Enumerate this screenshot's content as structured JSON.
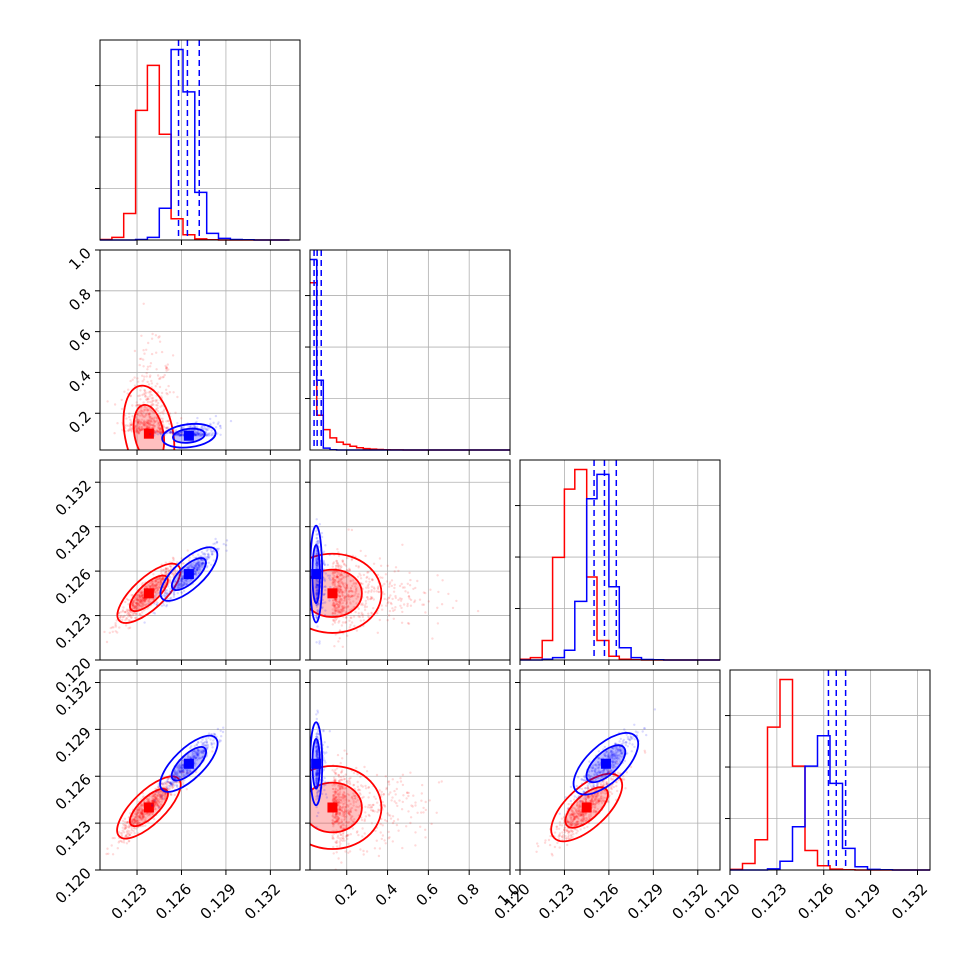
{
  "chart_data": {
    "type": "corner",
    "grid": true,
    "colors": {
      "series_a": "#ff0000",
      "series_b": "#0000ff"
    },
    "axis_ticks": {
      "p0": {
        "ticks": [
          0.123,
          0.126,
          0.129,
          0.132
        ],
        "labels": [
          "0.123",
          "0.126",
          "0.129",
          "0.132"
        ],
        "range": [
          0.1205,
          0.134
        ]
      },
      "p1": {
        "ticks": [
          0.2,
          0.4,
          0.6,
          0.8,
          1.0
        ],
        "labels": [
          "0.2",
          "0.4",
          "0.6",
          "0.8",
          "1.0"
        ],
        "range": [
          0.02,
          1.0
        ]
      },
      "p2": {
        "ticks": [
          0.12,
          0.123,
          0.126,
          0.129,
          0.132
        ],
        "labels": [
          "0.120",
          "0.123",
          "0.126",
          "0.129",
          "0.132"
        ],
        "range": [
          0.12,
          0.1335
        ]
      },
      "p3": {
        "ticks": [
          0.12,
          0.123,
          0.126,
          0.129,
          0.132
        ],
        "labels": [
          "0.120",
          "0.123",
          "0.126",
          "0.129",
          "0.132"
        ],
        "range": [
          0.12,
          0.1328
        ]
      }
    },
    "diagonal": [
      {
        "param": "p0",
        "bins": [
          0.1205,
          0.1213,
          0.1221,
          0.1229,
          0.1237,
          0.1245,
          0.1253,
          0.1261,
          0.1269,
          0.1277,
          0.1285,
          0.1293,
          0.1301,
          0.1309,
          0.1317,
          0.1325,
          0.1333
        ],
        "series": [
          {
            "name": "",
            "color": "#ff0000",
            "counts": [
              0.2,
              1.0,
              10.0,
              49.0,
              66.0,
              40.0,
              8.0,
              2.0,
              0.4,
              0.1,
              0,
              0,
              0,
              0,
              0,
              0
            ]
          },
          {
            "name": "",
            "color": "#0000ff",
            "counts": [
              0,
              0,
              0,
              0.2,
              1.0,
              12.0,
              72.0,
              56.0,
              18.0,
              2.5,
              0.6,
              0.2,
              0.1,
              0,
              0,
              0
            ]
          }
        ],
        "quantiles": [
          0.1258,
          0.1264,
          0.1272
        ]
      },
      {
        "param": "p1",
        "bins": [
          0.02,
          0.0526,
          0.0853,
          0.1179,
          0.1505,
          0.1831,
          0.2158,
          0.2484,
          0.281,
          0.3137,
          0.3463,
          0.3789,
          0.4115,
          0.4442,
          0.4768,
          0.5094,
          0.542,
          0.5747,
          0.6073,
          0.64,
          0.6727,
          0.7053,
          0.738,
          0.7706,
          0.8033,
          0.8359,
          0.8686,
          0.9012,
          0.9339,
          0.9665,
          1.0
        ],
        "series": [
          {
            "name": "",
            "color": "#ff0000",
            "counts": [
              360,
              75,
              44,
              26,
              17,
              12,
              8,
              5,
              3,
              2,
              1,
              0.6,
              0.3,
              0.15,
              0.05,
              0.02,
              0.01,
              0,
              0,
              0,
              0,
              0,
              0,
              0,
              0,
              0,
              0,
              0,
              0,
              0
            ]
          },
          {
            "name": "",
            "color": "#0000ff",
            "counts": [
              410,
              150,
              4,
              0.5,
              0.1,
              0,
              0,
              0,
              0,
              0,
              0,
              0,
              0,
              0,
              0,
              0,
              0,
              0,
              0,
              0,
              0,
              0,
              0,
              0,
              0,
              0,
              0,
              0,
              0,
              0
            ]
          }
        ],
        "quantiles": [
          0.04,
          0.055,
          0.075
        ]
      },
      {
        "param": "p2",
        "bins": [
          0.12,
          0.1207,
          0.1215,
          0.1222,
          0.123,
          0.1237,
          0.1245,
          0.1252,
          0.126,
          0.1267,
          0.1275,
          0.1282,
          0.129,
          0.1297,
          0.1305,
          0.1312,
          0.132,
          0.1327,
          0.1335
        ],
        "series": [
          {
            "name": "",
            "color": "#ff0000",
            "counts": [
              0.3,
              1.0,
              8.0,
              42.0,
              70.0,
              78.0,
              34.0,
              8.0,
              1.5,
              0.3,
              0.1,
              0,
              0,
              0,
              0,
              0,
              0,
              0
            ]
          },
          {
            "name": "",
            "color": "#0000ff",
            "counts": [
              0,
              0,
              0.3,
              1.0,
              4.0,
              24.0,
              66.0,
              76.0,
              30.0,
              5.0,
              1.0,
              0.2,
              0.1,
              0,
              0,
              0,
              0,
              0
            ]
          }
        ],
        "quantiles": [
          0.125,
          0.1257,
          0.1265
        ]
      },
      {
        "param": "p3",
        "bins": [
          0.12,
          0.1208,
          0.1216,
          0.1224,
          0.1232,
          0.124,
          0.1248,
          0.1256,
          0.1264,
          0.1272,
          0.128,
          0.1288,
          0.1296,
          0.1304,
          0.1312,
          0.132,
          0.1328
        ],
        "series": [
          {
            "name": "",
            "color": "#ff0000",
            "counts": [
              0.3,
              3.0,
              14.0,
              66.0,
              88.0,
              48.0,
              9.0,
              2.0,
              0.4,
              0.1,
              0,
              0,
              0,
              0,
              0,
              0
            ]
          },
          {
            "name": "",
            "color": "#0000ff",
            "counts": [
              0,
              0,
              0,
              0.5,
              4.0,
              20.0,
              48.0,
              62.0,
              40.0,
              10.0,
              1.5,
              0.3,
              0.1,
              0,
              0,
              0
            ]
          }
        ],
        "quantiles": [
          0.1263,
          0.1268,
          0.1274
        ]
      }
    ],
    "pairs": [
      {
        "x_param": "p0",
        "y_param": "p1",
        "series": [
          {
            "color": "#ff0000",
            "center": [
              0.1238,
              0.1
            ],
            "spread": [
              0.0008,
              0.11
            ],
            "rho": 0.1,
            "n": 500
          },
          {
            "color": "#0000ff",
            "center": [
              0.1265,
              0.09
            ],
            "spread": [
              0.0009,
              0.02
            ],
            "rho": 0.4,
            "n": 300
          }
        ]
      },
      {
        "x_param": "p0",
        "y_param": "p2",
        "series": [
          {
            "color": "#ff0000",
            "center": [
              0.1238,
              0.1245
            ],
            "spread": [
              0.001,
              0.001
            ],
            "rho": 0.92,
            "n": 600
          },
          {
            "color": "#0000ff",
            "center": [
              0.1265,
              0.1258
            ],
            "spread": [
              0.0009,
              0.0009
            ],
            "rho": 0.92,
            "n": 400
          }
        ]
      },
      {
        "x_param": "p0",
        "y_param": "p3",
        "series": [
          {
            "color": "#ff0000",
            "center": [
              0.1238,
              0.124
            ],
            "spread": [
              0.001,
              0.001
            ],
            "rho": 0.92,
            "n": 600
          },
          {
            "color": "#0000ff",
            "center": [
              0.1265,
              0.1268
            ],
            "spread": [
              0.0009,
              0.0009
            ],
            "rho": 0.92,
            "n": 400
          }
        ]
      },
      {
        "x_param": "p1",
        "y_param": "p2",
        "series": [
          {
            "color": "#ff0000",
            "center": [
              0.13,
              0.1245
            ],
            "spread": [
              0.12,
              0.0012
            ],
            "rho": 0.0,
            "n": 600
          },
          {
            "color": "#0000ff",
            "center": [
              0.05,
              0.1258
            ],
            "spread": [
              0.015,
              0.0015
            ],
            "rho": 0.0,
            "n": 300
          }
        ]
      },
      {
        "x_param": "p1",
        "y_param": "p3",
        "series": [
          {
            "color": "#ff0000",
            "center": [
              0.13,
              0.124
            ],
            "spread": [
              0.12,
              0.0012
            ],
            "rho": 0.0,
            "n": 600
          },
          {
            "color": "#0000ff",
            "center": [
              0.05,
              0.1268
            ],
            "spread": [
              0.015,
              0.0012
            ],
            "rho": 0.0,
            "n": 300
          }
        ]
      },
      {
        "x_param": "p2",
        "y_param": "p3",
        "series": [
          {
            "color": "#ff0000",
            "center": [
              0.1245,
              0.124
            ],
            "spread": [
              0.0011,
              0.0011
            ],
            "rho": 0.88,
            "n": 600
          },
          {
            "color": "#0000ff",
            "center": [
              0.1258,
              0.1268
            ],
            "spread": [
              0.001,
              0.001
            ],
            "rho": 0.88,
            "n": 400
          }
        ]
      }
    ]
  }
}
